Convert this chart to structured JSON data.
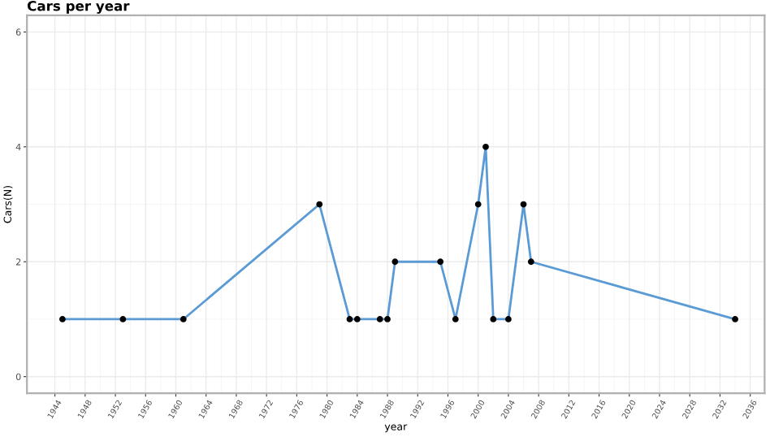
{
  "chart_data": {
    "type": "line",
    "title": "Cars per year",
    "xlabel": "year",
    "ylabel": "Cars(N)",
    "x": [
      1945,
      1953,
      1961,
      1979,
      1983,
      1984,
      1987,
      1988,
      1989,
      1995,
      1997,
      2000,
      2001,
      2002,
      2004,
      2006,
      2007,
      2034
    ],
    "series": [
      {
        "color": "#5b9bd5",
        "values": [
          1,
          1,
          1,
          3,
          1,
          1,
          1,
          1,
          2,
          2,
          1,
          3,
          4,
          1,
          1,
          3,
          2,
          1
        ]
      }
    ],
    "marker": "circle",
    "grid": true,
    "xlim": [
      1940.3,
      2037.9
    ],
    "ylim": [
      -0.29,
      6.29
    ],
    "xticks": [
      1944,
      1948,
      1952,
      1956,
      1960,
      1964,
      1968,
      1972,
      1976,
      1980,
      1984,
      1988,
      1992,
      1996,
      2000,
      2004,
      2008,
      2012,
      2016,
      2020,
      2024,
      2028,
      2032,
      2036
    ],
    "yticks": [
      0,
      2,
      4,
      6
    ]
  }
}
